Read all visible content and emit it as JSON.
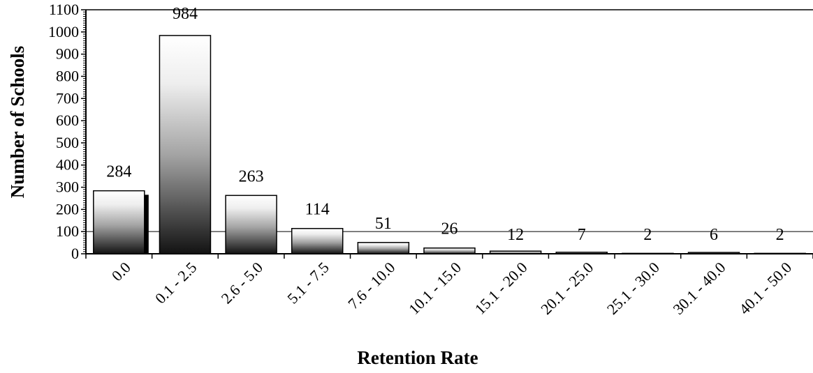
{
  "chart_data": {
    "type": "bar",
    "title": "",
    "xlabel": "Retention Rate",
    "ylabel": "Number of Schools",
    "categories": [
      "0.0",
      "0.1 - 2.5",
      "2.6 - 5.0",
      "5.1 - 7.5",
      "7.6 - 10.0",
      "10.1 - 15.0",
      "15.1 - 20.0",
      "20.1 - 25.0",
      "25.1 - 30.0",
      "30.1 - 40.0",
      "40.1 - 50.0"
    ],
    "values": [
      284,
      984,
      263,
      114,
      51,
      26,
      12,
      7,
      2,
      6,
      2
    ],
    "data_labels": [
      "284",
      "984",
      "263",
      "114",
      "51",
      "26",
      "12",
      "7",
      "2",
      "6",
      "2"
    ],
    "ylim": [
      0,
      1100
    ],
    "yticks": [
      0,
      100,
      200,
      300,
      400,
      500,
      600,
      700,
      800,
      900,
      1000,
      1100
    ],
    "ytick_labels": [
      "0",
      "100",
      "200",
      "300",
      "400",
      "500",
      "600",
      "700",
      "800",
      "900",
      "1000",
      "1100"
    ],
    "reference_line": 100,
    "grid": false,
    "legend": "none",
    "colors": {
      "bar_light": "#ffffff",
      "bar_mid": "#9a9a9a",
      "bar_dark": "#111111",
      "axis": "#000000"
    }
  }
}
